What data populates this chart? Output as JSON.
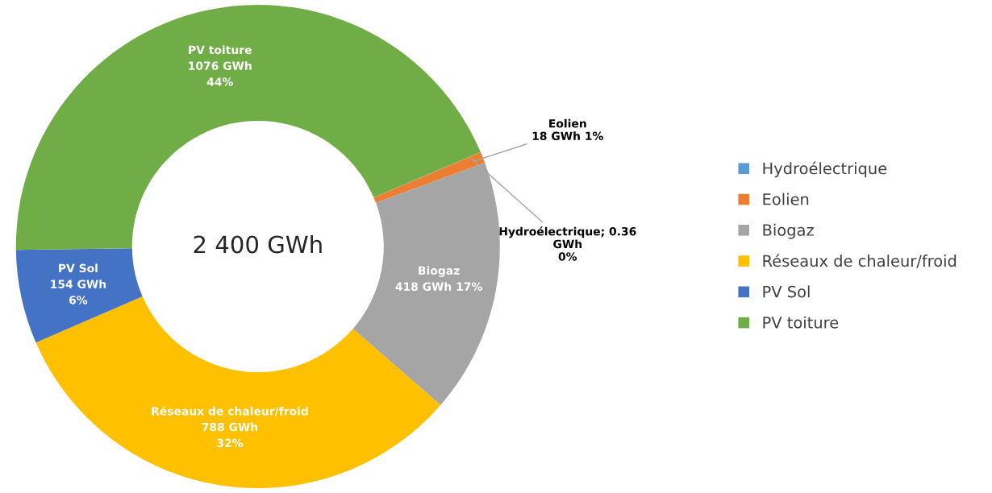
{
  "chart_data": {
    "type": "donut",
    "categories": [
      "Hydroélectrique",
      "Eolien",
      "Biogaz",
      "Réseaux de chaleur/froid",
      "PV Sol",
      "PV toiture"
    ],
    "values": [
      0.36,
      18,
      418,
      788,
      154,
      1076
    ],
    "colors": [
      "#5b9bd5",
      "#ed7d31",
      "#a5a5a5",
      "#ffc000",
      "#4472c4",
      "#70ad47"
    ],
    "value_labels": [
      "Hydroélectrique; 0.36\nGWh\n0%",
      "Eolien\n18 GWh 1%",
      "Biogaz\n418 GWh 17%",
      "Réseaux de chaleur/froid\n788 GWh\n32%",
      "PV Sol\n154 GWh\n6%",
      "PV toiture\n1076 GWh\n44%"
    ],
    "annotations": [
      "2 400 GWh"
    ],
    "legend": "right"
  }
}
